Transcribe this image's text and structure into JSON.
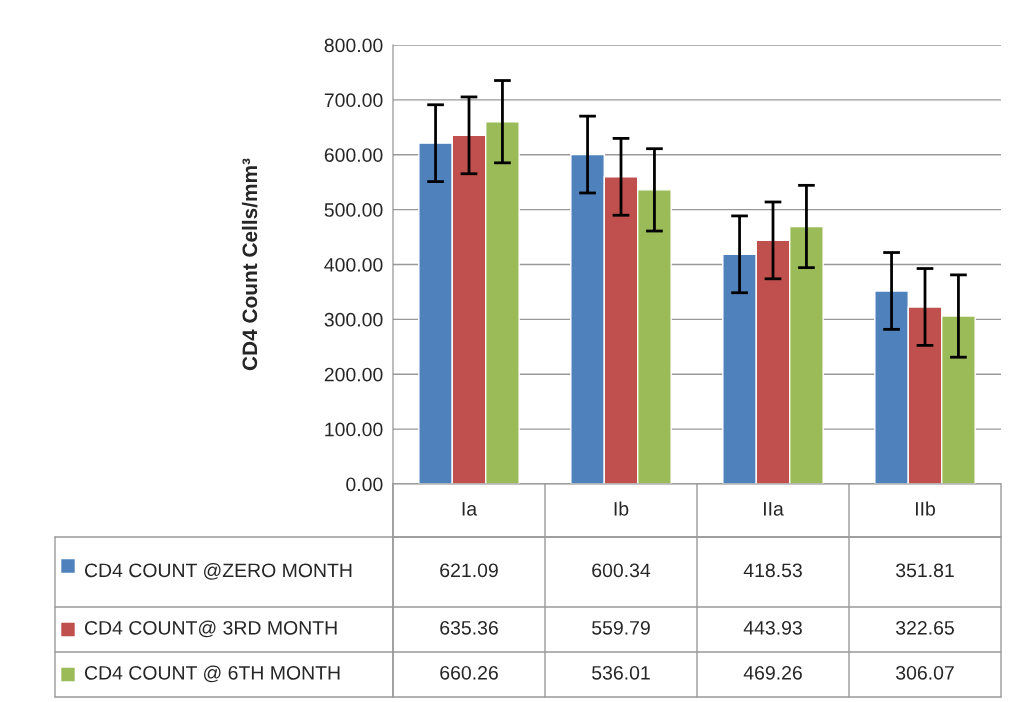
{
  "chart_data": {
    "type": "bar",
    "ylabel": "CD4 Count Cells/mm³",
    "categories": [
      "Ia",
      "Ib",
      "IIa",
      "IIb"
    ],
    "series": [
      {
        "name": "CD4 COUNT @ZERO MONTH",
        "color": "#4f81bd",
        "values": [
          621.09,
          600.34,
          418.53,
          351.81
        ],
        "errors": [
          70,
          70,
          70,
          70
        ]
      },
      {
        "name": "CD4 COUNT@ 3RD MONTH",
        "color": "#c0504d",
        "values": [
          635.36,
          559.79,
          443.93,
          322.65
        ],
        "errors": [
          70,
          70,
          70,
          70
        ]
      },
      {
        "name": "CD4 COUNT @ 6TH MONTH",
        "color": "#9bbb59",
        "values": [
          660.26,
          536.01,
          469.26,
          306.07
        ],
        "errors": [
          75,
          75,
          75,
          75
        ]
      }
    ],
    "ylim": [
      0,
      800
    ],
    "yticks": [
      {
        "value": 0,
        "label": "0.00"
      },
      {
        "value": 100,
        "label": "100.00"
      },
      {
        "value": 200,
        "label": "200.00"
      },
      {
        "value": 300,
        "label": "300.00"
      },
      {
        "value": 400,
        "label": "400.00"
      },
      {
        "value": 500,
        "label": "500.00"
      },
      {
        "value": 600,
        "label": "600.00"
      },
      {
        "value": 700,
        "label": "700.00"
      },
      {
        "value": 800,
        "label": "800.00"
      }
    ],
    "grid": "y",
    "legend": "bottom",
    "data_labels": true
  }
}
